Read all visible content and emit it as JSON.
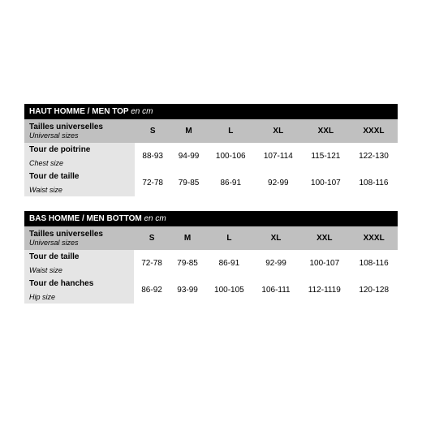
{
  "topTable": {
    "header": "HAUT HOMME / MEN TOP",
    "headerSuffix": "en cm",
    "sizesLabelFr": "Tailles universelles",
    "sizesLabelEn": "Universal sizes",
    "sizes": [
      "S",
      "M",
      "L",
      "XL",
      "XXL",
      "XXXL"
    ],
    "rows": [
      {
        "labelFr": "Tour de poitrine",
        "labelEn": "Chest size",
        "values": [
          "88-93",
          "94-99",
          "100-106",
          "107-114",
          "115-121",
          "122-130"
        ]
      },
      {
        "labelFr": "Tour de taille",
        "labelEn": "Waist size",
        "values": [
          "72-78",
          "79-85",
          "86-91",
          "92-99",
          "100-107",
          "108-116"
        ]
      }
    ]
  },
  "bottomTable": {
    "header": "BAS HOMME / MEN BOTTOM",
    "headerSuffix": "en cm",
    "sizesLabelFr": "Tailles universelles",
    "sizesLabelEn": "Universal sizes",
    "sizes": [
      "S",
      "M",
      "L",
      "XL",
      "XXL",
      "XXXL"
    ],
    "rows": [
      {
        "labelFr": "Tour de taille",
        "labelEn": "Waist size",
        "values": [
          "72-78",
          "79-85",
          "86-91",
          "92-99",
          "100-107",
          "108-116"
        ]
      },
      {
        "labelFr": "Tour de hanches",
        "labelEn": "Hip size",
        "values": [
          "86-92",
          "93-99",
          "100-105",
          "106-111",
          "112-1119",
          "120-128"
        ]
      }
    ]
  },
  "colors": {
    "headerBg": "#000000",
    "headerText": "#ffffff",
    "sizesRowBg": "#c0c0c0",
    "labelBg": "#e5e5e5",
    "dataBg": "#ffffff",
    "text": "#000000"
  }
}
